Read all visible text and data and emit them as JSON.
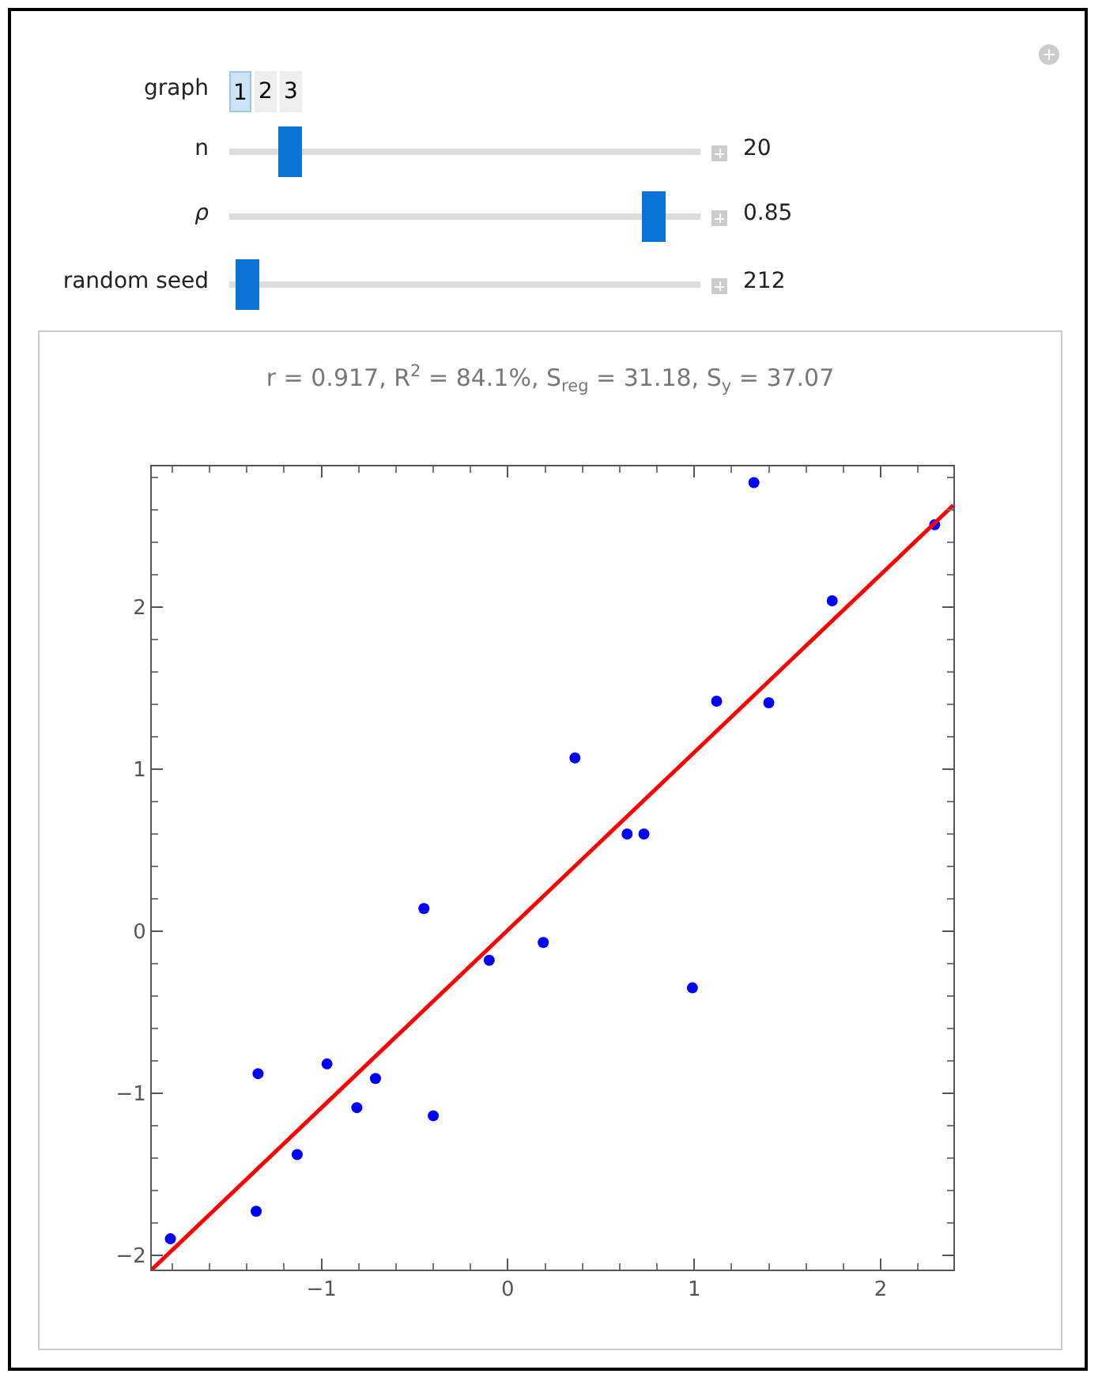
{
  "chart_data": {
    "type": "scatter",
    "title": "r = 0.917, R$^{2}$ = 84.1%, S$_{reg}$ = 31.18, S$_{y}$ = 37.07",
    "annotations": [
      "graph",
      "1",
      "2",
      "3",
      "n",
      "20",
      "ρ",
      "0.85",
      "random seed",
      "212"
    ],
    "xlim": [
      -1.91,
      2.39
    ],
    "ylim": [
      -2.09,
      2.87
    ],
    "xticks": [
      {
        "value": -1,
        "label": "−1"
      },
      0,
      1,
      2
    ],
    "yticks": [
      {
        "value": -2,
        "label": "−2"
      },
      {
        "value": -1,
        "label": "−1"
      },
      0,
      1,
      2
    ],
    "grid": false,
    "series": [
      {
        "type": "scatter",
        "marker": "circle",
        "color": "#0000ff",
        "x": [
          -1.81,
          -1.35,
          -1.34,
          -1.13,
          -0.97,
          -0.81,
          -0.71,
          -0.45,
          -0.4,
          -0.1,
          0.19,
          0.36,
          0.64,
          0.73,
          0.99,
          1.12,
          1.32,
          1.4,
          1.74,
          2.29
        ],
        "values": [
          -1.9,
          -1.73,
          -0.88,
          -1.38,
          -0.82,
          -1.09,
          -0.91,
          0.14,
          -1.14,
          -0.18,
          -0.07,
          1.07,
          0.6,
          0.6,
          -0.35,
          1.42,
          2.77,
          1.41,
          2.04,
          2.51
        ]
      },
      {
        "type": "line",
        "marker": "none",
        "color": "#ff0000",
        "line_style": "solid",
        "x": [
          -1.91,
          2.39
        ],
        "values": [
          -2.09,
          2.63
        ]
      }
    ]
  }
}
